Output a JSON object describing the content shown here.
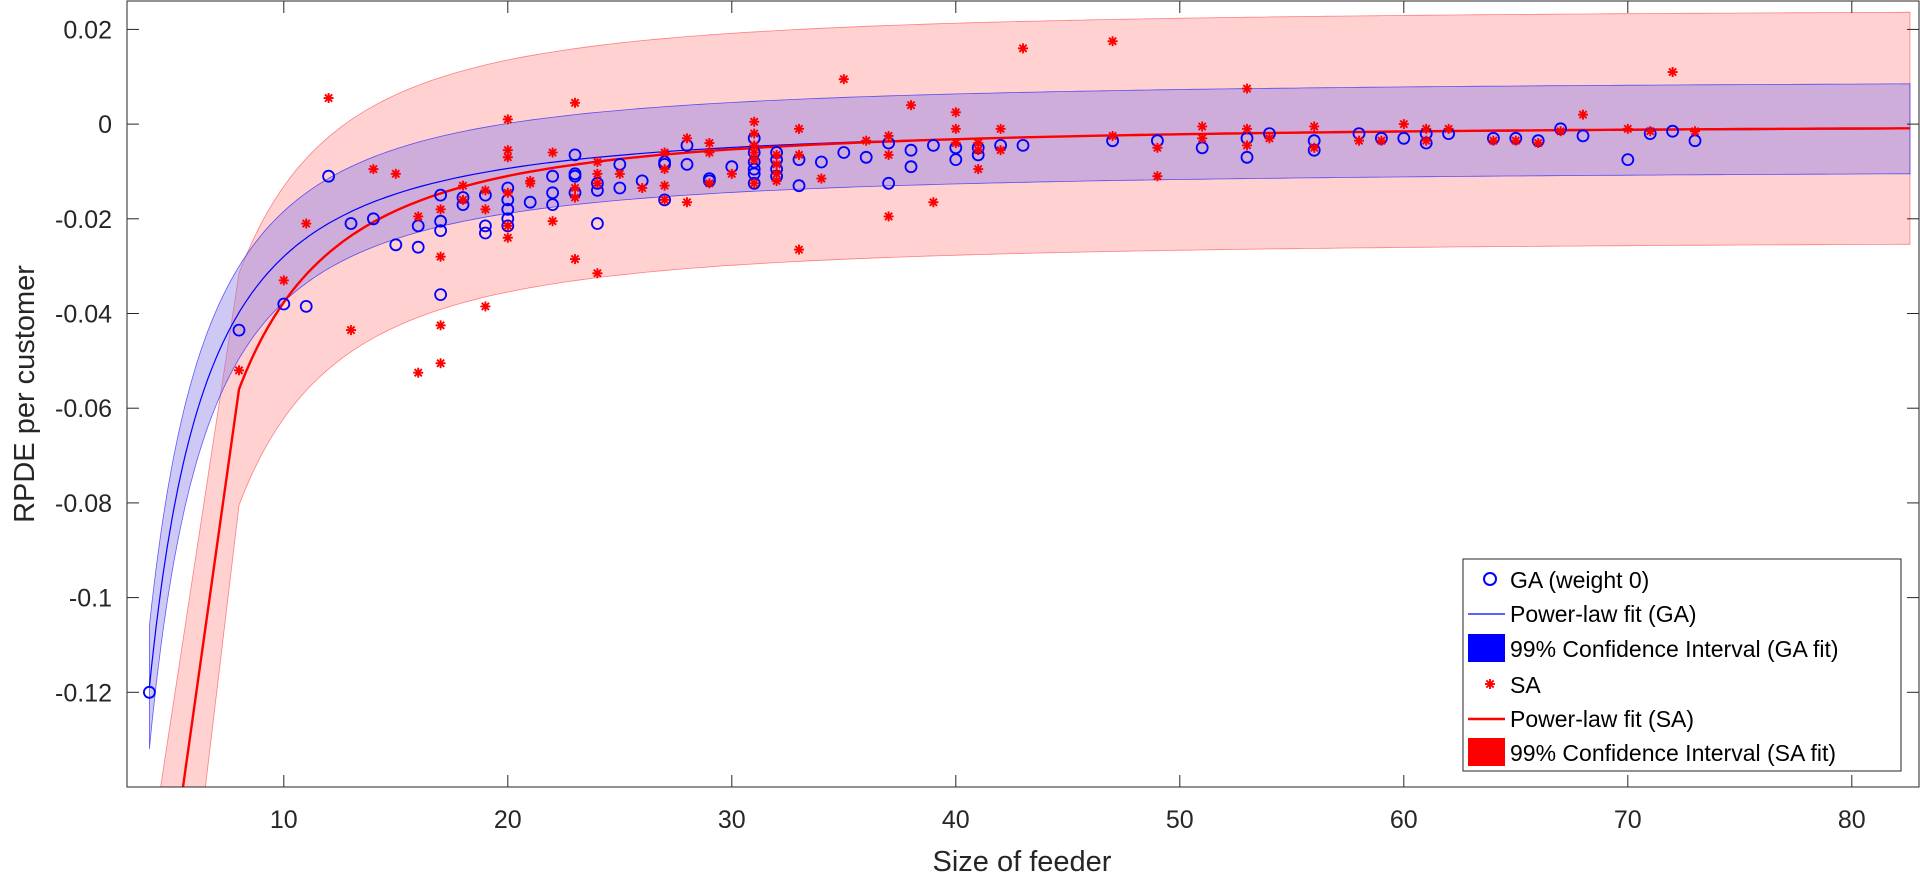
{
  "chart_data": {
    "type": "scatter",
    "title": "",
    "xlabel": "Size of feeder",
    "ylabel": "RPDE per customer",
    "xlim": [
      3,
      83
    ],
    "ylim": [
      -0.14,
      0.026
    ],
    "xticks": [
      10,
      20,
      30,
      40,
      50,
      60,
      70,
      80
    ],
    "yticks": [
      0.02,
      0,
      -0.02,
      -0.04,
      -0.06,
      -0.08,
      -0.1,
      -0.12
    ],
    "ytick_labels": [
      "0.02",
      "0",
      "-0.02",
      "-0.04",
      "-0.06",
      "-0.08",
      "-0.1",
      "-0.12"
    ],
    "colors": {
      "ga": "#0000ff",
      "sa": "#ff0000",
      "ga_band": "#8080ff",
      "sa_band": "#ff9999",
      "axis": "#262626"
    },
    "legend_position": "bottom-right",
    "legend": [
      {
        "label": "GA (weight 0)",
        "kind": "marker-circle",
        "color": "#0000ff"
      },
      {
        "label": "Power-law fit (GA)",
        "kind": "line",
        "color": "#0000ff"
      },
      {
        "label": "99% Confidence Interval (GA fit)",
        "kind": "patch",
        "color": "#0000ff"
      },
      {
        "label": "SA",
        "kind": "marker-star",
        "color": "#ff0000"
      },
      {
        "label": "Power-law fit (SA)",
        "kind": "line",
        "color": "#ff0000"
      },
      {
        "label": "99% Confidence Interval (SA fit)",
        "kind": "patch",
        "color": "#ff0000"
      }
    ],
    "fits": {
      "ga": {
        "name": "Power-law fit (GA)",
        "x0": 4,
        "y0": -0.119,
        "exponent": -1.58,
        "ci_halfwidth": 0.0095,
        "ci_x0_halfwidth": 0.013
      },
      "sa": {
        "name": "Power-law fit (SA)",
        "x0": 8,
        "y0": -0.056,
        "exponent": -1.78,
        "ci_halfwidth": 0.0245,
        "steep_from": [
          5.5,
          -0.14
        ]
      }
    },
    "series": [
      {
        "name": "GA (weight 0)",
        "marker": "circle",
        "points": [
          [
            4,
            -0.12
          ],
          [
            8,
            -0.0435
          ],
          [
            10,
            -0.038
          ],
          [
            11,
            -0.0385
          ],
          [
            12,
            -0.011
          ],
          [
            13,
            -0.021
          ],
          [
            14,
            -0.02
          ],
          [
            15,
            -0.0255
          ],
          [
            16,
            -0.026
          ],
          [
            16,
            -0.0215
          ],
          [
            17,
            -0.015
          ],
          [
            17,
            -0.0205
          ],
          [
            17,
            -0.0225
          ],
          [
            17,
            -0.036
          ],
          [
            18,
            -0.0155
          ],
          [
            18,
            -0.017
          ],
          [
            19,
            -0.015
          ],
          [
            19,
            -0.0215
          ],
          [
            19,
            -0.023
          ],
          [
            20,
            -0.0135
          ],
          [
            20,
            -0.016
          ],
          [
            20,
            -0.018
          ],
          [
            20,
            -0.02
          ],
          [
            20,
            -0.0215
          ],
          [
            21,
            -0.0165
          ],
          [
            22,
            -0.0145
          ],
          [
            22,
            -0.017
          ],
          [
            22,
            -0.011
          ],
          [
            23,
            -0.0065
          ],
          [
            23,
            -0.0105
          ],
          [
            23,
            -0.011
          ],
          [
            23,
            -0.0145
          ],
          [
            24,
            -0.0125
          ],
          [
            24,
            -0.014
          ],
          [
            24,
            -0.021
          ],
          [
            25,
            -0.0085
          ],
          [
            25,
            -0.0135
          ],
          [
            26,
            -0.012
          ],
          [
            27,
            -0.008
          ],
          [
            27,
            -0.0085
          ],
          [
            27,
            -0.016
          ],
          [
            28,
            -0.0045
          ],
          [
            28,
            -0.0085
          ],
          [
            29,
            -0.0115
          ],
          [
            29,
            -0.012
          ],
          [
            30,
            -0.009
          ],
          [
            31,
            -0.003
          ],
          [
            31,
            -0.006
          ],
          [
            31,
            -0.008
          ],
          [
            31,
            -0.0095
          ],
          [
            31,
            -0.0105
          ],
          [
            31,
            -0.0125
          ],
          [
            32,
            -0.006
          ],
          [
            32,
            -0.0075
          ],
          [
            32,
            -0.0095
          ],
          [
            32,
            -0.011
          ],
          [
            33,
            -0.0075
          ],
          [
            33,
            -0.013
          ],
          [
            34,
            -0.008
          ],
          [
            35,
            -0.006
          ],
          [
            36,
            -0.007
          ],
          [
            37,
            -0.004
          ],
          [
            37,
            -0.0125
          ],
          [
            38,
            -0.0055
          ],
          [
            38,
            -0.009
          ],
          [
            39,
            -0.0045
          ],
          [
            40,
            -0.005
          ],
          [
            40,
            -0.0075
          ],
          [
            41,
            -0.0065
          ],
          [
            41,
            -0.005
          ],
          [
            42,
            -0.0045
          ],
          [
            43,
            -0.0045
          ],
          [
            47,
            -0.0035
          ],
          [
            49,
            -0.0035
          ],
          [
            51,
            -0.005
          ],
          [
            53,
            -0.003
          ],
          [
            53,
            -0.007
          ],
          [
            54,
            -0.002
          ],
          [
            56,
            -0.0035
          ],
          [
            56,
            -0.0055
          ],
          [
            58,
            -0.002
          ],
          [
            59,
            -0.003
          ],
          [
            60,
            -0.003
          ],
          [
            61,
            -0.002
          ],
          [
            61,
            -0.004
          ],
          [
            62,
            -0.002
          ],
          [
            64,
            -0.003
          ],
          [
            65,
            -0.003
          ],
          [
            66,
            -0.0035
          ],
          [
            67,
            -0.001
          ],
          [
            68,
            -0.0025
          ],
          [
            70,
            -0.0075
          ],
          [
            71,
            -0.002
          ],
          [
            72,
            -0.0015
          ],
          [
            73,
            -0.0035
          ]
        ]
      },
      {
        "name": "SA",
        "marker": "star",
        "points": [
          [
            8,
            -0.052
          ],
          [
            10,
            -0.033
          ],
          [
            11,
            -0.021
          ],
          [
            12,
            0.0055
          ],
          [
            13,
            -0.0435
          ],
          [
            14,
            -0.0095
          ],
          [
            15,
            -0.0105
          ],
          [
            16,
            -0.0195
          ],
          [
            16,
            -0.0525
          ],
          [
            17,
            -0.018
          ],
          [
            17,
            -0.028
          ],
          [
            17,
            -0.0425
          ],
          [
            17,
            -0.0505
          ],
          [
            18,
            -0.013
          ],
          [
            18,
            -0.016
          ],
          [
            19,
            -0.018
          ],
          [
            19,
            -0.0385
          ],
          [
            19,
            -0.014
          ],
          [
            20,
            0.001
          ],
          [
            20,
            -0.0055
          ],
          [
            20,
            -0.007
          ],
          [
            20,
            -0.0145
          ],
          [
            20,
            -0.024
          ],
          [
            20,
            -0.0215
          ],
          [
            21,
            -0.012
          ],
          [
            21,
            -0.0125
          ],
          [
            22,
            -0.006
          ],
          [
            22,
            -0.0205
          ],
          [
            23,
            0.0045
          ],
          [
            23,
            -0.0135
          ],
          [
            23,
            -0.0155
          ],
          [
            23,
            -0.0285
          ],
          [
            24,
            -0.008
          ],
          [
            24,
            -0.0105
          ],
          [
            24,
            -0.0125
          ],
          [
            24,
            -0.0315
          ],
          [
            25,
            -0.0105
          ],
          [
            26,
            -0.0135
          ],
          [
            27,
            -0.006
          ],
          [
            27,
            -0.0095
          ],
          [
            27,
            -0.013
          ],
          [
            27,
            -0.016
          ],
          [
            28,
            -0.003
          ],
          [
            28,
            -0.0165
          ],
          [
            29,
            -0.004
          ],
          [
            29,
            -0.006
          ],
          [
            29,
            -0.0125
          ],
          [
            30,
            -0.0105
          ],
          [
            31,
            0.0005
          ],
          [
            31,
            -0.002
          ],
          [
            31,
            -0.0045
          ],
          [
            31,
            -0.006
          ],
          [
            31,
            -0.0075
          ],
          [
            31,
            -0.0125
          ],
          [
            32,
            -0.0065
          ],
          [
            32,
            -0.0085
          ],
          [
            32,
            -0.0105
          ],
          [
            32,
            -0.012
          ],
          [
            33,
            -0.001
          ],
          [
            33,
            -0.0065
          ],
          [
            33,
            -0.0265
          ],
          [
            34,
            -0.0115
          ],
          [
            35,
            0.0095
          ],
          [
            36,
            -0.0035
          ],
          [
            37,
            -0.0025
          ],
          [
            37,
            -0.0065
          ],
          [
            37,
            -0.0195
          ],
          [
            38,
            0.004
          ],
          [
            39,
            -0.0165
          ],
          [
            40,
            0.0025
          ],
          [
            40,
            -0.001
          ],
          [
            40,
            -0.004
          ],
          [
            41,
            -0.004
          ],
          [
            41,
            -0.0055
          ],
          [
            41,
            -0.0095
          ],
          [
            42,
            -0.001
          ],
          [
            42,
            -0.0055
          ],
          [
            43,
            0.016
          ],
          [
            47,
            0.0175
          ],
          [
            47,
            -0.0025
          ],
          [
            49,
            -0.005
          ],
          [
            49,
            -0.011
          ],
          [
            51,
            -0.0005
          ],
          [
            51,
            -0.003
          ],
          [
            53,
            0.0075
          ],
          [
            53,
            -0.001
          ],
          [
            53,
            -0.0045
          ],
          [
            54,
            -0.003
          ],
          [
            56,
            -0.0005
          ],
          [
            56,
            -0.005
          ],
          [
            58,
            -0.0035
          ],
          [
            59,
            -0.0035
          ],
          [
            60,
            0
          ],
          [
            61,
            -0.001
          ],
          [
            61,
            -0.0035
          ],
          [
            62,
            -0.001
          ],
          [
            64,
            -0.0035
          ],
          [
            65,
            -0.0035
          ],
          [
            66,
            -0.004
          ],
          [
            67,
            -0.0015
          ],
          [
            68,
            0.002
          ],
          [
            70,
            -0.001
          ],
          [
            71,
            -0.0015
          ],
          [
            72,
            0.011
          ],
          [
            73,
            -0.0015
          ]
        ]
      }
    ]
  }
}
